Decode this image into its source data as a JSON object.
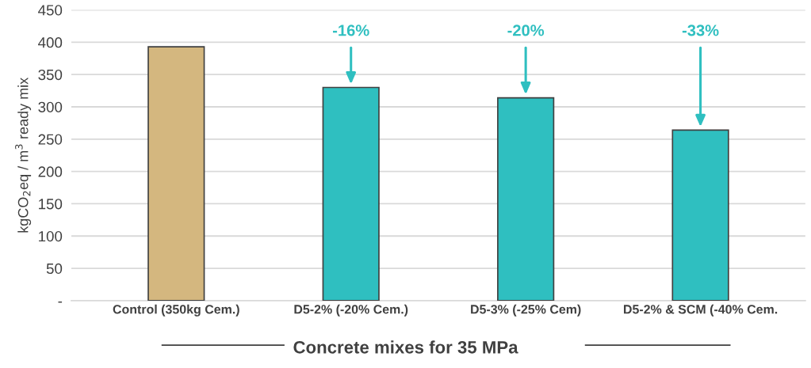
{
  "chart_data": {
    "type": "bar",
    "categories": [
      "Control (350kg Cem.)",
      "D5-2% (-20% Cem.)",
      "D5-3% (-25% Cem)",
      "D5-2% & SCM (-40% Cem."
    ],
    "values": [
      393,
      330,
      314,
      264
    ],
    "colors": [
      "#d4b77f",
      "#2fbfc0",
      "#2fbfc0",
      "#2fbfc0"
    ],
    "ylabel": "kgCO$_{2}$eq / m$^{3}$ ready mix",
    "xlabel": "Concrete mixes for 35 MPa",
    "ylim": [
      0,
      450
    ],
    "yticks": [
      {
        "value": 0,
        "label": "-"
      },
      50,
      100,
      150,
      200,
      250,
      300,
      350,
      400,
      450
    ],
    "grid": "y",
    "annotations": [
      {
        "text": "-16%",
        "x": "D5-2% (-20% Cem.)",
        "y": 330
      },
      {
        "text": "-20%",
        "x": "D5-3% (-25% Cem)",
        "y": 314
      },
      {
        "text": "-33%",
        "x": "D5-2% & SCM (-40% Cem.",
        "y": 264
      }
    ]
  }
}
